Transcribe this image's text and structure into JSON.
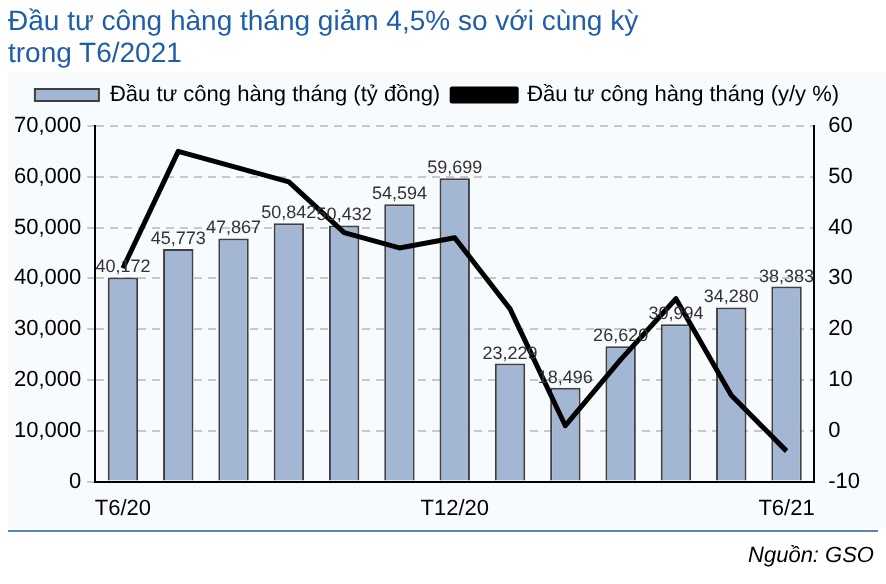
{
  "chart_data": {
    "type": "bar",
    "title": "Đầu tư công hàng tháng giảm 4,5% so với cùng kỳ trong T6/2021",
    "categories": [
      "T6/20",
      null,
      null,
      null,
      null,
      null,
      "T12/20",
      null,
      null,
      null,
      null,
      null,
      "T6/21"
    ],
    "series": [
      {
        "name": "Đầu tư công hàng tháng (tỷ đồng)",
        "color": "#a3b7d4",
        "values": [
          40172,
          45773,
          47867,
          50842,
          50432,
          54594,
          59699,
          23229,
          18496,
          26620,
          30994,
          34280,
          38383
        ],
        "value_labels": [
          "40,172",
          "45,773",
          "47,867",
          "50,842",
          "50,432",
          "54,594",
          "59,699",
          "23,229",
          "18,496",
          "26,620",
          "30,994",
          "34,280",
          "38,383"
        ]
      },
      {
        "name": "Đầu tư công hàng tháng (y/y %)",
        "type": "line",
        "axis": "y2",
        "color": "#000000",
        "values": [
          32,
          55,
          52,
          49,
          39,
          36,
          38,
          24,
          1,
          14,
          26,
          7,
          -4
        ]
      }
    ],
    "ylim": [
      0,
      70000
    ],
    "yticks": [
      0,
      {
        "value": 10000,
        "label": "10,000"
      },
      {
        "value": 20000,
        "label": "20,000"
      },
      {
        "value": 30000,
        "label": "30,000"
      },
      {
        "value": 40000,
        "label": "40,000"
      },
      {
        "value": 50000,
        "label": "50,000"
      },
      {
        "value": 60000,
        "label": "60,000"
      },
      {
        "value": 70000,
        "label": "70,000"
      }
    ],
    "y2lim": [
      -10,
      60
    ],
    "y2ticks": [
      -10,
      0,
      10,
      20,
      30,
      40,
      50,
      60
    ],
    "grid": "y",
    "legend": "top",
    "marker": "none",
    "annotations": [
      "Nguồn: GSO"
    ]
  }
}
